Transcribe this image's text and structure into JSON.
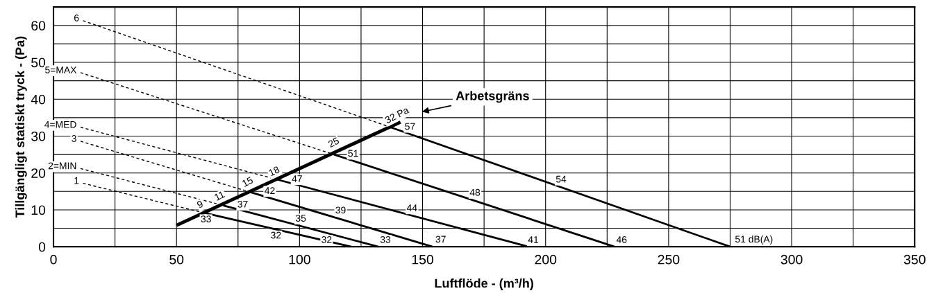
{
  "chart_data": {
    "type": "line",
    "xlabel": "Luftflöde - (m³/h)",
    "ylabel": "Tillgängligt statiskt tryck - (Pa)",
    "xlim": [
      0,
      350
    ],
    "ylim": [
      0,
      65
    ],
    "xticks": [
      0,
      {
        "value": 25,
        "label": null
      },
      50,
      {
        "value": 75,
        "label": null
      },
      100,
      {
        "value": 125,
        "label": null
      },
      150,
      {
        "value": 175,
        "label": null
      },
      200,
      {
        "value": 225,
        "label": null
      },
      250,
      {
        "value": 275,
        "label": null
      },
      300,
      {
        "value": 325,
        "label": null
      },
      350
    ],
    "yticks": [
      0,
      {
        "value": 5,
        "label": null
      },
      10,
      {
        "value": 15,
        "label": null
      },
      20,
      {
        "value": 25,
        "label": null
      },
      30,
      {
        "value": 35,
        "label": null
      },
      40,
      {
        "value": 45,
        "label": null
      },
      50,
      {
        "value": 55,
        "label": null
      },
      60,
      {
        "value": 65,
        "label": null
      }
    ],
    "grid": true,
    "marker": "none",
    "series": [
      {
        "color": "#000000",
        "line_style": "solid",
        "x": [
          50,
          141
        ],
        "values": [
          5.8,
          33.8
        ]
      },
      {
        "name": "1",
        "color": "#000000",
        "line_style": "dashed",
        "x": [
          12,
          61
        ],
        "values": [
          17.2,
          9.2
        ]
      },
      {
        "name": "2=MIN",
        "color": "#000000",
        "line_style": "dashed",
        "x": [
          11,
          69
        ],
        "values": [
          21.2,
          11.2
        ]
      },
      {
        "name": "3",
        "color": "#000000",
        "line_style": "dashed",
        "x": [
          11,
          80
        ],
        "values": [
          28.6,
          14.8
        ]
      },
      {
        "name": "4=MED",
        "color": "#000000",
        "line_style": "dashed",
        "x": [
          11,
          91
        ],
        "values": [
          32.4,
          18.2
        ]
      },
      {
        "name": "5=MAX",
        "color": "#000000",
        "line_style": "dashed",
        "x": [
          11,
          114
        ],
        "values": [
          47.2,
          25
        ]
      },
      {
        "name": "6",
        "color": "#000000",
        "line_style": "dashed",
        "x": [
          12,
          137
        ],
        "values": [
          61.3,
          32.4
        ]
      },
      {
        "color": "#000000",
        "line_style": "solid",
        "x": [
          61,
          121
        ],
        "values": [
          9.2,
          0
        ]
      },
      {
        "color": "#000000",
        "line_style": "solid",
        "x": [
          69,
          132
        ],
        "values": [
          11.2,
          0
        ]
      },
      {
        "color": "#000000",
        "line_style": "solid",
        "x": [
          80,
          154
        ],
        "values": [
          14.8,
          0
        ]
      },
      {
        "color": "#000000",
        "line_style": "solid",
        "x": [
          91,
          193
        ],
        "values": [
          18.2,
          0
        ]
      },
      {
        "color": "#000000",
        "line_style": "solid",
        "x": [
          114,
          228
        ],
        "values": [
          25,
          0
        ]
      },
      {
        "color": "#000000",
        "line_style": "solid",
        "x": [
          137,
          275
        ],
        "values": [
          32.4,
          0
        ]
      }
    ],
    "annotations": [
      "Arbetsgräns",
      {
        "text": "9",
        "x": 59.7,
        "y": 11.3
      },
      {
        "text": "11",
        "x": 67.6,
        "y": 13.6
      },
      {
        "text": "15",
        "x": 79,
        "y": 17.4
      },
      {
        "text": "18",
        "x": 89.8,
        "y": 20.3
      },
      {
        "text": "25",
        "x": 114,
        "y": 28.1
      },
      {
        "text": "32 Pa",
        "x": 139.7,
        "y": 35.5
      },
      {
        "text": "33",
        "x": 62,
        "y": 7.3
      },
      {
        "text": "32",
        "x": 90.4,
        "y": 2.9
      },
      {
        "text": "32",
        "x": 111,
        "y": 1.7
      },
      {
        "text": "37",
        "x": 76.9,
        "y": 11.3
      },
      {
        "text": "35",
        "x": 100.5,
        "y": 7.5
      },
      {
        "text": "33",
        "x": 134.9,
        "y": 1.7
      },
      {
        "text": "42",
        "x": 87.9,
        "y": 15.0
      },
      {
        "text": "39",
        "x": 116.7,
        "y": 9.7
      },
      {
        "text": "37",
        "x": 157.4,
        "y": 1.8
      },
      {
        "text": "47",
        "x": 99,
        "y": 18.2
      },
      {
        "text": "44",
        "x": 145.7,
        "y": 10.3
      },
      {
        "text": "41",
        "x": 195,
        "y": 1.7
      },
      {
        "text": "51",
        "x": 121.8,
        "y": 25.1
      },
      {
        "text": "48",
        "x": 171.3,
        "y": 14.5
      },
      {
        "text": "46",
        "x": 230.9,
        "y": 1.7
      },
      {
        "text": "57",
        "x": 144.9,
        "y": 32.4
      },
      {
        "text": "54",
        "x": 206.3,
        "y": 18.1
      },
      {
        "text": "51 dB(A)",
        "x": 275,
        "y": 0
      }
    ]
  }
}
